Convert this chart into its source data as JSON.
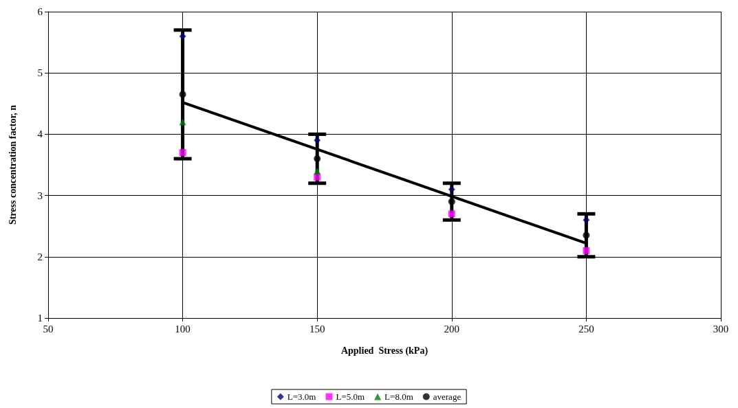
{
  "chart_data": {
    "type": "scatter",
    "xlabel": "Applied  Stress (kPa)",
    "ylabel": "Stress concentration factor, n",
    "x": [
      100,
      150,
      200,
      250
    ],
    "xlim": [
      50,
      300
    ],
    "xticks": [
      50,
      100,
      150,
      200,
      250,
      300
    ],
    "ylim": [
      1,
      6
    ],
    "yticks": [
      1,
      2,
      3,
      4,
      5,
      6
    ],
    "grid": true,
    "legend": "bottom",
    "series": [
      {
        "name": "L=3.0m",
        "color": "#000080",
        "marker": "diamond",
        "values": [
          5.6,
          3.9,
          3.1,
          2.6
        ]
      },
      {
        "name": "L=5.0m",
        "color": "#ff00ff",
        "marker": "square",
        "values": [
          3.7,
          3.3,
          2.7,
          2.1
        ]
      },
      {
        "name": "L=8.0m",
        "color": "#008000",
        "marker": "triangle",
        "values": [
          4.2,
          3.4,
          null,
          null
        ]
      },
      {
        "name": "average",
        "color": "#000000",
        "marker": "circle",
        "values": [
          4.65,
          3.6,
          2.9,
          2.35
        ],
        "errors": [
          [
            3.6,
            5.7
          ],
          [
            3.2,
            4.0
          ],
          [
            2.6,
            3.2
          ],
          [
            2.0,
            2.7
          ]
        ]
      },
      {
        "type": "line",
        "color": "#000000",
        "marker": "none",
        "x": [
          100,
          250
        ],
        "values": [
          4.52,
          2.22
        ]
      }
    ]
  }
}
